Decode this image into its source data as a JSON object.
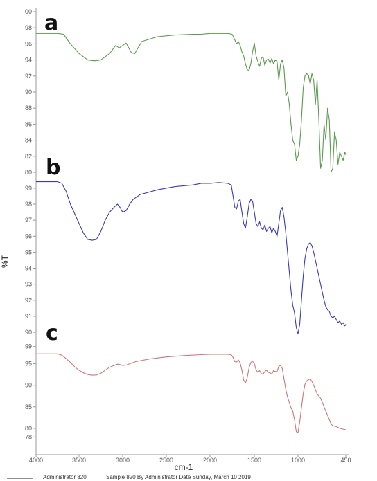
{
  "chart_data": {
    "type": "line",
    "ylabel": "%T",
    "xlabel": "cm-1",
    "x_ticks": [
      "4000",
      "3500",
      "3000",
      "2500",
      "2000",
      "1500",
      "1000",
      "450"
    ],
    "xlim": [
      4000,
      450
    ],
    "panels": [
      {
        "label": "a",
        "color": "#5a9a4e",
        "y_ticks": [
          "00",
          "98",
          "96",
          "94",
          "92",
          "90",
          "88",
          "86",
          "84",
          "82",
          "80"
        ],
        "ylim": [
          80,
          100
        ],
        "points": [
          [
            4000,
            97.3
          ],
          [
            3750,
            97.3
          ],
          [
            3680,
            97.2
          ],
          [
            3600,
            96.0
          ],
          [
            3500,
            94.8
          ],
          [
            3400,
            94.0
          ],
          [
            3320,
            93.9
          ],
          [
            3250,
            94.0
          ],
          [
            3150,
            94.8
          ],
          [
            3080,
            95.8
          ],
          [
            3040,
            95.5
          ],
          [
            3000,
            95.8
          ],
          [
            2960,
            96.1
          ],
          [
            2930,
            95.5
          ],
          [
            2900,
            94.9
          ],
          [
            2860,
            94.8
          ],
          [
            2830,
            95.4
          ],
          [
            2780,
            96.3
          ],
          [
            2600,
            96.9
          ],
          [
            2400,
            97.1
          ],
          [
            2200,
            97.2
          ],
          [
            2100,
            97.2
          ],
          [
            2000,
            97.3
          ],
          [
            1900,
            97.3
          ],
          [
            1800,
            97.3
          ],
          [
            1750,
            97.2
          ],
          [
            1720,
            96.5
          ],
          [
            1700,
            96.0
          ],
          [
            1680,
            96.3
          ],
          [
            1660,
            95.8
          ],
          [
            1640,
            95.0
          ],
          [
            1620,
            94.5
          ],
          [
            1600,
            93.5
          ],
          [
            1580,
            92.8
          ],
          [
            1560,
            92.7
          ],
          [
            1540,
            93.5
          ],
          [
            1520,
            95.0
          ],
          [
            1500,
            96.1
          ],
          [
            1480,
            94.5
          ],
          [
            1460,
            93.8
          ],
          [
            1440,
            93.2
          ],
          [
            1420,
            94.2
          ],
          [
            1400,
            94.4
          ],
          [
            1380,
            93.3
          ],
          [
            1360,
            94.0
          ],
          [
            1340,
            94.1
          ],
          [
            1320,
            93.6
          ],
          [
            1300,
            94.2
          ],
          [
            1280,
            93.5
          ],
          [
            1260,
            94.0
          ],
          [
            1240,
            93.8
          ],
          [
            1220,
            91.5
          ],
          [
            1200,
            93.5
          ],
          [
            1180,
            94.0
          ],
          [
            1160,
            93.0
          ],
          [
            1140,
            89.5
          ],
          [
            1120,
            90.0
          ],
          [
            1100,
            88.5
          ],
          [
            1080,
            86.0
          ],
          [
            1060,
            84.0
          ],
          [
            1040,
            83.5
          ],
          [
            1020,
            81.5
          ],
          [
            1000,
            82.0
          ],
          [
            980,
            83.5
          ],
          [
            960,
            86.5
          ],
          [
            940,
            90.5
          ],
          [
            920,
            92.0
          ],
          [
            900,
            92.3
          ],
          [
            880,
            92.1
          ],
          [
            860,
            91.0
          ],
          [
            840,
            92.3
          ],
          [
            820,
            91.5
          ],
          [
            800,
            88.5
          ],
          [
            780,
            91.5
          ],
          [
            760,
            86.5
          ],
          [
            740,
            80.5
          ],
          [
            720,
            81.5
          ],
          [
            700,
            86.0
          ],
          [
            680,
            84.0
          ],
          [
            660,
            88.0
          ],
          [
            640,
            86.5
          ],
          [
            620,
            80.0
          ],
          [
            600,
            80.5
          ],
          [
            580,
            85.0
          ],
          [
            560,
            84.0
          ],
          [
            540,
            81.0
          ],
          [
            520,
            82.5
          ],
          [
            500,
            82.0
          ],
          [
            480,
            81.5
          ],
          [
            460,
            82.5
          ],
          [
            450,
            82.2
          ]
        ]
      },
      {
        "label": "b",
        "color": "#3a3ac0",
        "y_ticks": [
          "99",
          "98",
          "97",
          "96",
          "95",
          "94",
          "93",
          "92",
          "91",
          "90"
        ],
        "ylim": [
          89.7,
          99.6
        ],
        "points": [
          [
            4000,
            99.4
          ],
          [
            3750,
            99.4
          ],
          [
            3700,
            99.3
          ],
          [
            3650,
            98.8
          ],
          [
            3600,
            98.0
          ],
          [
            3550,
            97.4
          ],
          [
            3500,
            96.8
          ],
          [
            3450,
            96.2
          ],
          [
            3400,
            95.8
          ],
          [
            3350,
            95.75
          ],
          [
            3300,
            95.8
          ],
          [
            3250,
            96.3
          ],
          [
            3200,
            97.0
          ],
          [
            3150,
            97.5
          ],
          [
            3100,
            97.8
          ],
          [
            3060,
            98.0
          ],
          [
            3030,
            97.8
          ],
          [
            3000,
            97.5
          ],
          [
            2960,
            97.6
          ],
          [
            2920,
            98.0
          ],
          [
            2880,
            98.3
          ],
          [
            2800,
            98.6
          ],
          [
            2600,
            98.9
          ],
          [
            2400,
            99.1
          ],
          [
            2200,
            99.2
          ],
          [
            2100,
            99.3
          ],
          [
            2000,
            99.3
          ],
          [
            1900,
            99.35
          ],
          [
            1800,
            99.3
          ],
          [
            1760,
            99.2
          ],
          [
            1740,
            98.5
          ],
          [
            1720,
            97.8
          ],
          [
            1700,
            97.7
          ],
          [
            1680,
            98.2
          ],
          [
            1660,
            98.3
          ],
          [
            1640,
            97.5
          ],
          [
            1620,
            96.8
          ],
          [
            1600,
            96.5
          ],
          [
            1580,
            97.2
          ],
          [
            1560,
            98.0
          ],
          [
            1540,
            98.3
          ],
          [
            1520,
            98.2
          ],
          [
            1500,
            97.5
          ],
          [
            1480,
            96.8
          ],
          [
            1460,
            96.6
          ],
          [
            1440,
            96.9
          ],
          [
            1420,
            96.5
          ],
          [
            1400,
            96.4
          ],
          [
            1380,
            96.7
          ],
          [
            1360,
            96.3
          ],
          [
            1340,
            96.5
          ],
          [
            1320,
            96.6
          ],
          [
            1300,
            96.2
          ],
          [
            1280,
            96.5
          ],
          [
            1260,
            96.3
          ],
          [
            1240,
            96.0
          ],
          [
            1220,
            96.8
          ],
          [
            1200,
            97.6
          ],
          [
            1180,
            97.8
          ],
          [
            1160,
            97.2
          ],
          [
            1140,
            96.2
          ],
          [
            1120,
            95.0
          ],
          [
            1100,
            93.8
          ],
          [
            1080,
            92.6
          ],
          [
            1060,
            91.7
          ],
          [
            1040,
            91.2
          ],
          [
            1020,
            90.3
          ],
          [
            1000,
            89.9
          ],
          [
            980,
            90.5
          ],
          [
            960,
            92.0
          ],
          [
            940,
            93.5
          ],
          [
            920,
            94.6
          ],
          [
            900,
            95.2
          ],
          [
            880,
            95.5
          ],
          [
            860,
            95.6
          ],
          [
            840,
            95.4
          ],
          [
            820,
            95.0
          ],
          [
            800,
            94.5
          ],
          [
            780,
            94.0
          ],
          [
            760,
            93.5
          ],
          [
            740,
            93.0
          ],
          [
            720,
            92.5
          ],
          [
            700,
            92.0
          ],
          [
            680,
            91.6
          ],
          [
            660,
            91.4
          ],
          [
            640,
            91.3
          ],
          [
            620,
            91.0
          ],
          [
            600,
            90.9
          ],
          [
            580,
            91.0
          ],
          [
            560,
            90.8
          ],
          [
            540,
            90.6
          ],
          [
            520,
            90.7
          ],
          [
            500,
            90.5
          ],
          [
            480,
            90.6
          ],
          [
            460,
            90.4
          ],
          [
            450,
            90.5
          ]
        ]
      },
      {
        "label": "c",
        "color": "#d4737c",
        "y_ticks": [
          "99",
          "95",
          "90",
          "85",
          "80",
          "78"
        ],
        "ylim": [
          76.6,
          99.6
        ],
        "points": [
          [
            4000,
            97.3
          ],
          [
            3750,
            97.3
          ],
          [
            3700,
            97.0
          ],
          [
            3650,
            96.2
          ],
          [
            3600,
            95.3
          ],
          [
            3550,
            94.3
          ],
          [
            3500,
            93.5
          ],
          [
            3450,
            92.9
          ],
          [
            3400,
            92.5
          ],
          [
            3350,
            92.35
          ],
          [
            3300,
            92.4
          ],
          [
            3250,
            92.8
          ],
          [
            3200,
            93.5
          ],
          [
            3150,
            94.2
          ],
          [
            3100,
            94.6
          ],
          [
            3060,
            94.9
          ],
          [
            3030,
            94.8
          ],
          [
            3000,
            94.6
          ],
          [
            2960,
            94.7
          ],
          [
            2920,
            95.0
          ],
          [
            2850,
            95.5
          ],
          [
            2700,
            96.1
          ],
          [
            2500,
            96.6
          ],
          [
            2300,
            96.9
          ],
          [
            2100,
            97.1
          ],
          [
            2000,
            97.2
          ],
          [
            1900,
            97.2
          ],
          [
            1800,
            97.2
          ],
          [
            1760,
            97.1
          ],
          [
            1740,
            96.5
          ],
          [
            1720,
            95.5
          ],
          [
            1700,
            95.4
          ],
          [
            1680,
            95.9
          ],
          [
            1660,
            95.2
          ],
          [
            1640,
            93.5
          ],
          [
            1620,
            91.2
          ],
          [
            1600,
            90.5
          ],
          [
            1580,
            91.8
          ],
          [
            1560,
            94.0
          ],
          [
            1540,
            95.3
          ],
          [
            1520,
            95.6
          ],
          [
            1500,
            95.0
          ],
          [
            1480,
            93.6
          ],
          [
            1460,
            93.0
          ],
          [
            1440,
            93.4
          ],
          [
            1420,
            92.7
          ],
          [
            1400,
            92.6
          ],
          [
            1380,
            93.2
          ],
          [
            1360,
            93.5
          ],
          [
            1340,
            93.0
          ],
          [
            1320,
            92.9
          ],
          [
            1300,
            92.6
          ],
          [
            1280,
            93.4
          ],
          [
            1260,
            93.2
          ],
          [
            1240,
            93.2
          ],
          [
            1220,
            94.4
          ],
          [
            1200,
            94.6
          ],
          [
            1180,
            93.9
          ],
          [
            1160,
            91.5
          ],
          [
            1140,
            89.0
          ],
          [
            1120,
            87.3
          ],
          [
            1100,
            86.0
          ],
          [
            1080,
            84.8
          ],
          [
            1060,
            84.0
          ],
          [
            1040,
            82.0
          ],
          [
            1020,
            79.2
          ],
          [
            1000,
            79.0
          ],
          [
            980,
            81.5
          ],
          [
            960,
            84.8
          ],
          [
            940,
            88.0
          ],
          [
            920,
            90.2
          ],
          [
            900,
            91.0
          ],
          [
            880,
            91.3
          ],
          [
            860,
            91.5
          ],
          [
            840,
            90.9
          ],
          [
            820,
            90.0
          ],
          [
            800,
            89.0
          ],
          [
            780,
            88.0
          ],
          [
            760,
            87.5
          ],
          [
            740,
            87.0
          ],
          [
            720,
            86.0
          ],
          [
            700,
            85.0
          ],
          [
            680,
            84.0
          ],
          [
            660,
            83.0
          ],
          [
            640,
            82.0
          ],
          [
            620,
            81.0
          ],
          [
            600,
            80.6
          ],
          [
            580,
            80.5
          ],
          [
            560,
            80.4
          ],
          [
            540,
            80.2
          ],
          [
            520,
            80.0
          ],
          [
            500,
            79.9
          ],
          [
            480,
            79.8
          ],
          [
            460,
            79.7
          ],
          [
            450,
            79.6
          ]
        ]
      }
    ]
  },
  "footer": {
    "line1": "Administrator 820",
    "line2": "Sample 820 By Administrator Date Sunday, March 10 2019"
  }
}
